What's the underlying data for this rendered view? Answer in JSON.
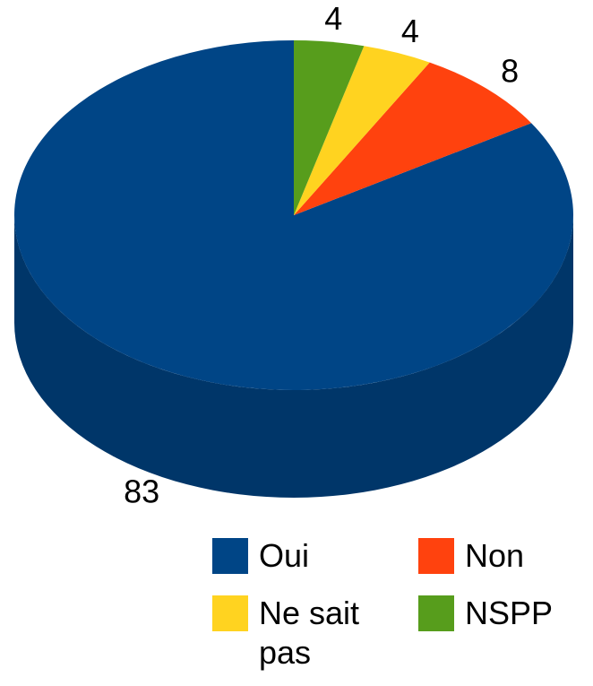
{
  "chart_data": {
    "type": "pie3d",
    "categories": [
      "Oui",
      "Non",
      "Ne sait pas",
      "NSPP"
    ],
    "values": [
      83,
      8,
      4,
      4
    ],
    "colors": [
      "#004586",
      "#ff420e",
      "#ffd320",
      "#579d1c"
    ],
    "legend": "bottom"
  }
}
